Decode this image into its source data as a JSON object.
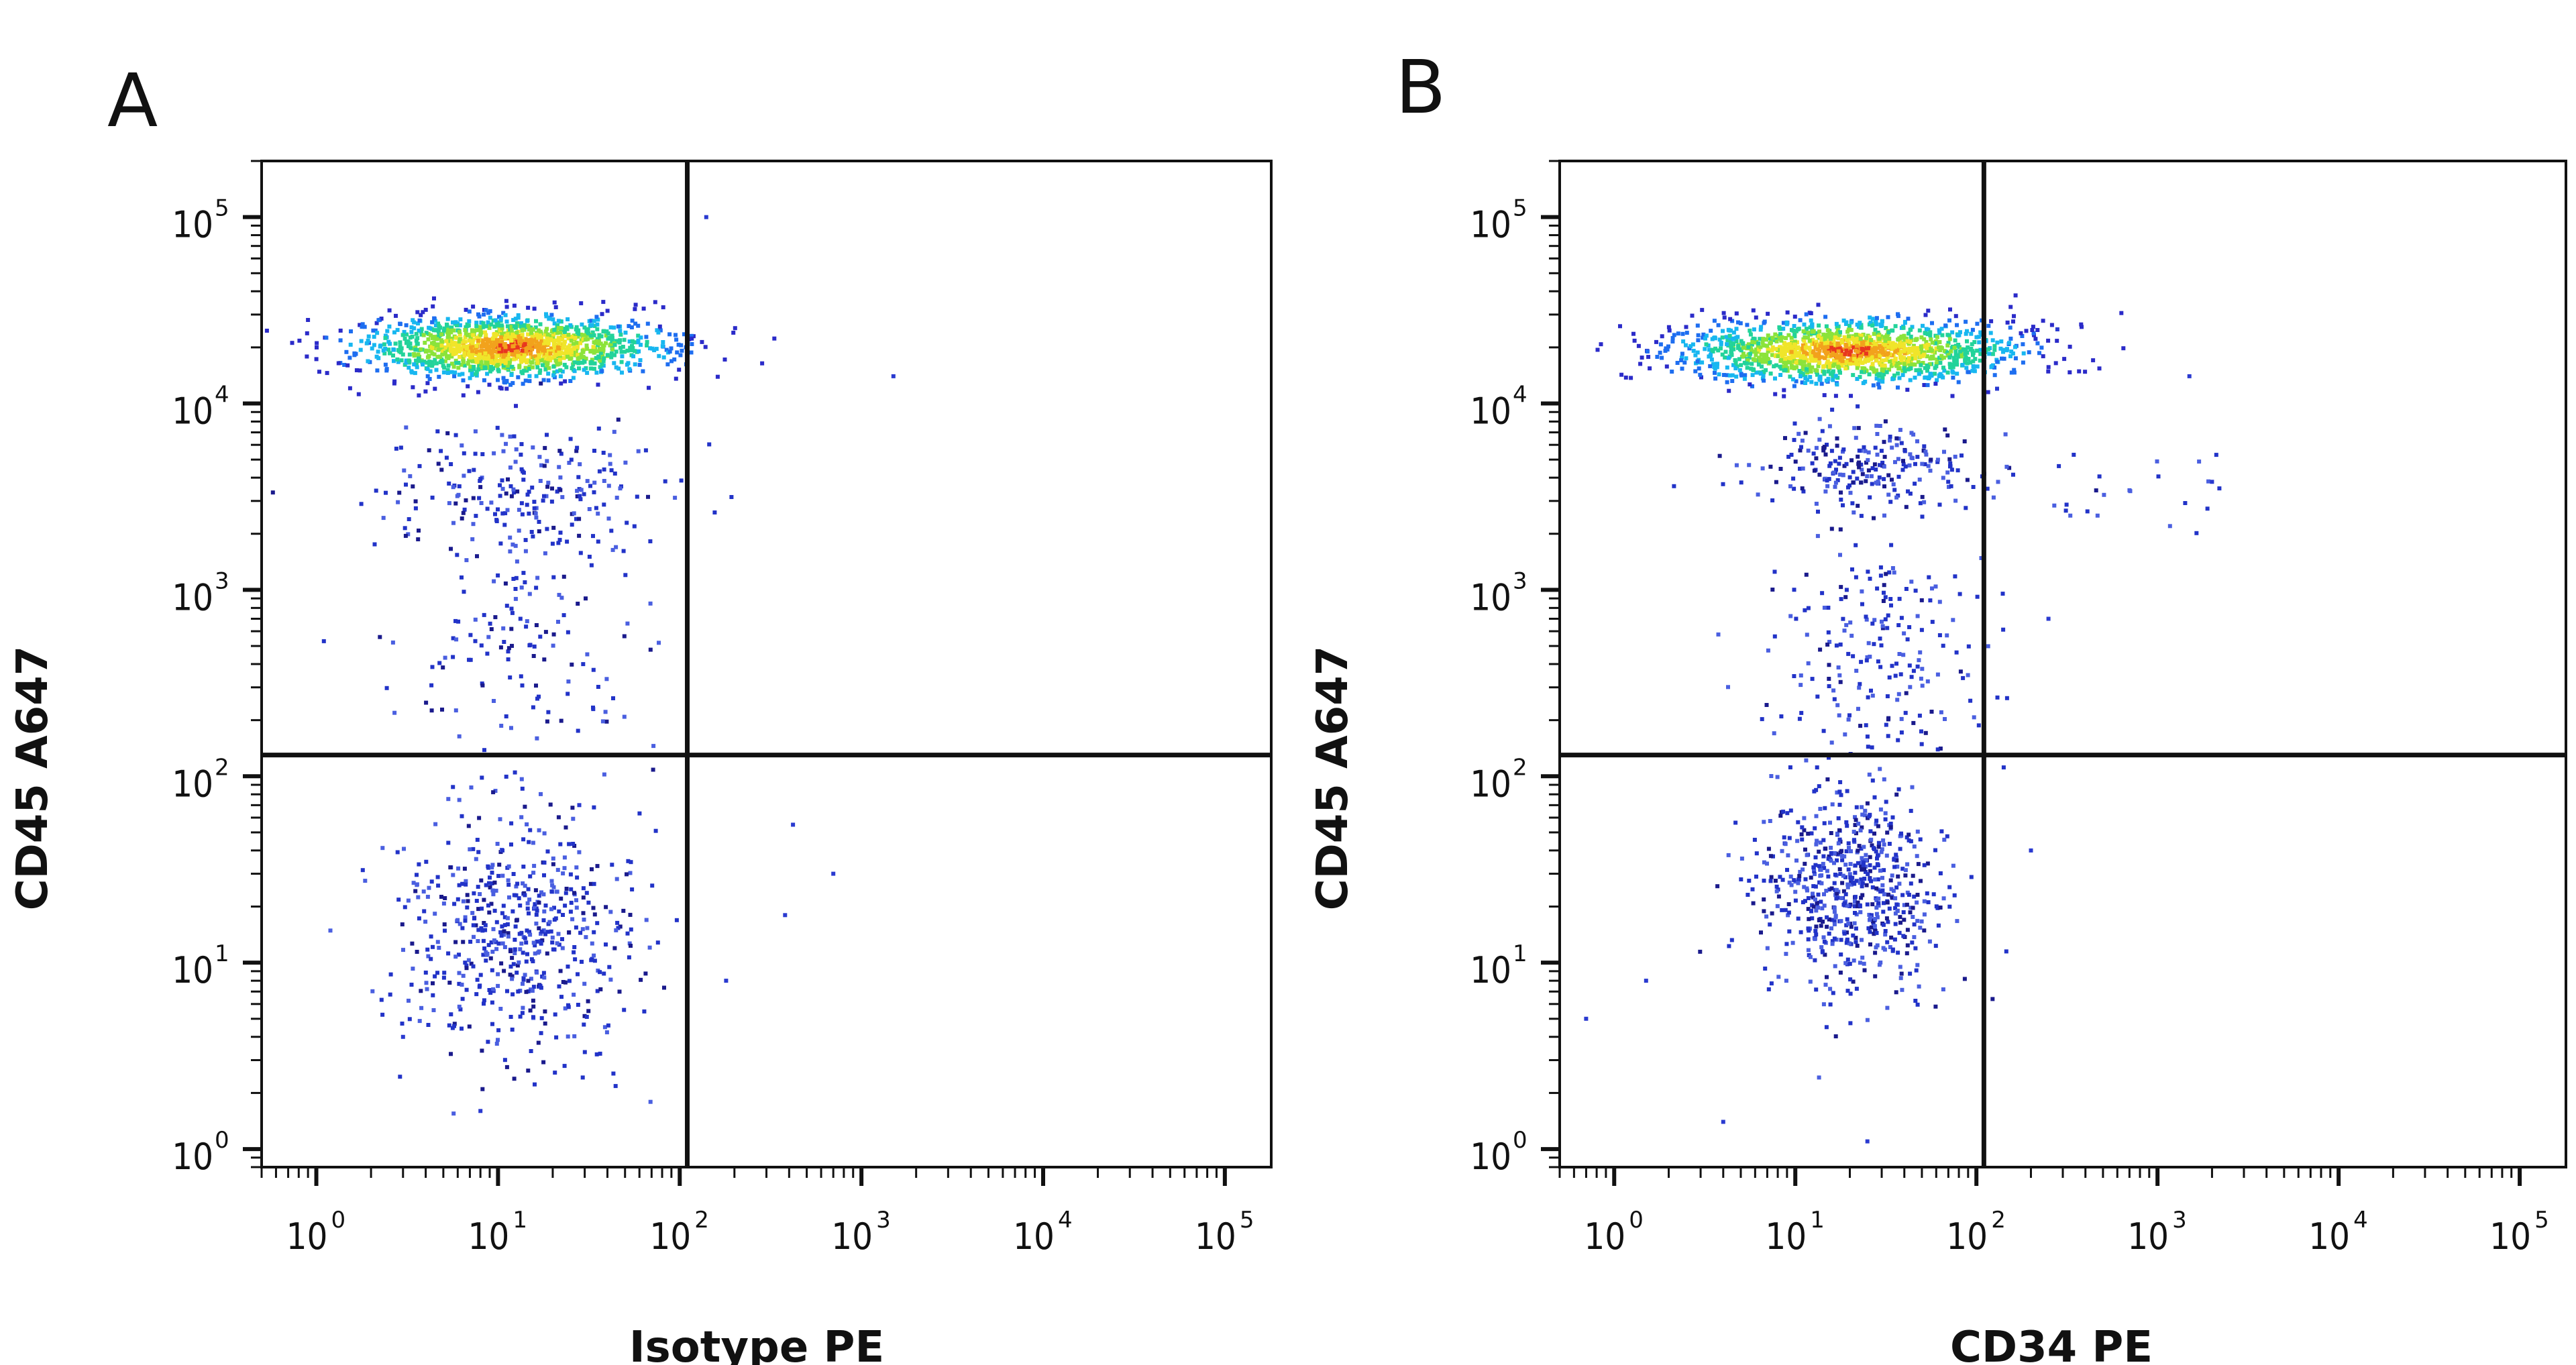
{
  "chart_data": [
    {
      "type": "scatter",
      "panel_label": "A",
      "xlabel": "Isotype PE",
      "ylabel": "CD45 A647",
      "x_scale": "log",
      "y_scale": "log",
      "xlim": [
        0.5,
        180000
      ],
      "ylim": [
        0.8,
        200000
      ],
      "x_ticks": [
        {
          "base": "10",
          "exp": "0",
          "value": 1
        },
        {
          "base": "10",
          "exp": "1",
          "value": 10
        },
        {
          "base": "10",
          "exp": "2",
          "value": 100
        },
        {
          "base": "10",
          "exp": "3",
          "value": 1000
        },
        {
          "base": "10",
          "exp": "4",
          "value": 10000
        },
        {
          "base": "10",
          "exp": "5",
          "value": 100000
        }
      ],
      "y_ticks": [
        {
          "base": "10",
          "exp": "0",
          "value": 1
        },
        {
          "base": "10",
          "exp": "1",
          "value": 10
        },
        {
          "base": "10",
          "exp": "2",
          "value": 100
        },
        {
          "base": "10",
          "exp": "3",
          "value": 1000
        },
        {
          "base": "10",
          "exp": "4",
          "value": 10000
        },
        {
          "base": "10",
          "exp": "5",
          "value": 100000
        }
      ],
      "gates": {
        "x": 110,
        "y": 130
      },
      "grid": false,
      "density_colormap": "blue-cyan-green-yellow-red",
      "populations": [
        {
          "x": 12,
          "y": 20000,
          "sx": 0.42,
          "sy": 0.085,
          "n": 1500,
          "core": true
        },
        {
          "x": 14,
          "y": 3200,
          "sx": 0.38,
          "sy": 0.2,
          "n": 230,
          "core": false
        },
        {
          "x": 14,
          "y": 500,
          "sx": 0.36,
          "sy": 0.28,
          "n": 130,
          "core": false
        },
        {
          "x": 13,
          "y": 15,
          "sx": 0.34,
          "sy": 0.32,
          "n": 560,
          "core": false
        }
      ],
      "outliers": [
        [
          28,
          70
        ],
        [
          140,
          100000
        ],
        [
          420,
          55
        ],
        [
          700,
          30
        ],
        [
          3,
          4
        ],
        [
          8,
          1.6
        ],
        [
          180,
          8
        ],
        [
          1500,
          14000
        ],
        [
          380,
          18
        ]
      ]
    },
    {
      "type": "scatter",
      "panel_label": "B",
      "xlabel": "CD34 PE",
      "ylabel": "CD45 A647",
      "x_scale": "log",
      "y_scale": "log",
      "xlim": [
        0.5,
        180000
      ],
      "ylim": [
        0.8,
        200000
      ],
      "x_ticks": [
        {
          "base": "10",
          "exp": "0",
          "value": 1
        },
        {
          "base": "10",
          "exp": "1",
          "value": 10
        },
        {
          "base": "10",
          "exp": "2",
          "value": 100
        },
        {
          "base": "10",
          "exp": "3",
          "value": 1000
        },
        {
          "base": "10",
          "exp": "4",
          "value": 10000
        },
        {
          "base": "10",
          "exp": "5",
          "value": 100000
        }
      ],
      "y_ticks": [
        {
          "base": "10",
          "exp": "0",
          "value": 1
        },
        {
          "base": "10",
          "exp": "1",
          "value": 10
        },
        {
          "base": "10",
          "exp": "2",
          "value": 100
        },
        {
          "base": "10",
          "exp": "3",
          "value": 1000
        },
        {
          "base": "10",
          "exp": "4",
          "value": 10000
        },
        {
          "base": "10",
          "exp": "5",
          "value": 100000
        }
      ],
      "gates": {
        "x": 110,
        "y": 130
      },
      "grid": false,
      "density_colormap": "blue-cyan-green-yellow-red",
      "populations": [
        {
          "x": 20,
          "y": 19000,
          "sx": 0.46,
          "sy": 0.085,
          "n": 1500,
          "core": true
        },
        {
          "x": 25,
          "y": 4500,
          "sx": 0.34,
          "sy": 0.12,
          "n": 230,
          "core": false
        },
        {
          "x": 30,
          "y": 500,
          "sx": 0.32,
          "sy": 0.3,
          "n": 200,
          "core": false
        },
        {
          "x": 20,
          "y": 25,
          "sx": 0.26,
          "sy": 0.28,
          "n": 650,
          "core": false
        },
        {
          "x": 700,
          "y": 3500,
          "sx": 0.35,
          "sy": 0.14,
          "n": 24,
          "core": false
        }
      ],
      "outliers": [
        [
          0.7,
          5
        ],
        [
          1.5,
          8
        ],
        [
          4,
          1.4
        ],
        [
          25,
          1.1
        ],
        [
          200,
          40
        ],
        [
          250,
          700
        ],
        [
          280,
          25000
        ],
        [
          1500,
          14000
        ],
        [
          2000,
          3800
        ],
        [
          130,
          12000
        ]
      ]
    }
  ]
}
